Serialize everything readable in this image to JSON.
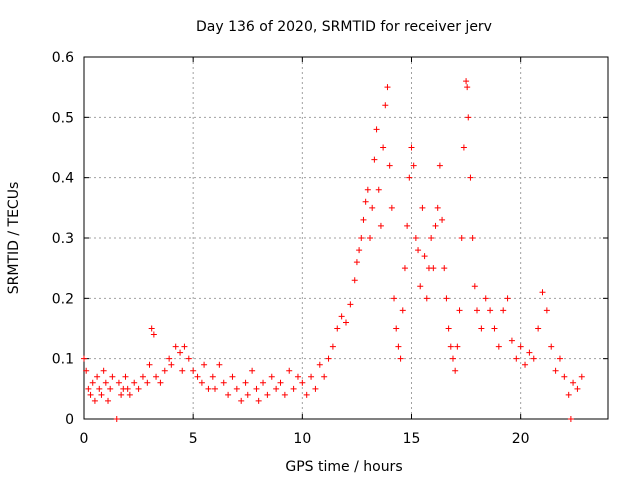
{
  "chart_data": {
    "type": "scatter",
    "title": "Day 136 of 2020, SRMTID for receiver jerv",
    "xlabel": "GPS time / hours",
    "ylabel": "SRMTID / TECUs",
    "xlim": [
      0,
      24
    ],
    "ylim": [
      0,
      0.6
    ],
    "xticks": [
      0,
      5,
      10,
      15,
      20
    ],
    "yticks": [
      0,
      0.1,
      0.2,
      0.3,
      0.4,
      0.5,
      0.6
    ],
    "xtick_labels": [
      "0",
      "5",
      "10",
      "15",
      "20"
    ],
    "ytick_labels": [
      "0",
      "0.1",
      "0.2",
      "0.3",
      "0.4",
      "0.5",
      "0.6"
    ],
    "grid": true,
    "marker": "+",
    "color": "#ff0000",
    "series": [
      {
        "name": "SRMTID",
        "points": [
          [
            0.0,
            0.1
          ],
          [
            0.1,
            0.08
          ],
          [
            0.2,
            0.05
          ],
          [
            0.3,
            0.04
          ],
          [
            0.4,
            0.06
          ],
          [
            0.5,
            0.03
          ],
          [
            0.6,
            0.07
          ],
          [
            0.7,
            0.05
          ],
          [
            0.8,
            0.04
          ],
          [
            0.9,
            0.08
          ],
          [
            1.0,
            0.06
          ],
          [
            1.1,
            0.03
          ],
          [
            1.2,
            0.05
          ],
          [
            1.3,
            0.07
          ],
          [
            1.5,
            0.0
          ],
          [
            1.6,
            0.06
          ],
          [
            1.7,
            0.04
          ],
          [
            1.8,
            0.05
          ],
          [
            1.9,
            0.07
          ],
          [
            2.0,
            0.05
          ],
          [
            2.1,
            0.04
          ],
          [
            2.3,
            0.06
          ],
          [
            2.5,
            0.05
          ],
          [
            2.7,
            0.07
          ],
          [
            2.9,
            0.06
          ],
          [
            3.0,
            0.09
          ],
          [
            3.1,
            0.15
          ],
          [
            3.2,
            0.14
          ],
          [
            3.3,
            0.07
          ],
          [
            3.5,
            0.06
          ],
          [
            3.7,
            0.08
          ],
          [
            3.9,
            0.1
          ],
          [
            4.0,
            0.09
          ],
          [
            4.2,
            0.12
          ],
          [
            4.4,
            0.11
          ],
          [
            4.5,
            0.08
          ],
          [
            4.6,
            0.12
          ],
          [
            4.8,
            0.1
          ],
          [
            5.0,
            0.08
          ],
          [
            5.2,
            0.07
          ],
          [
            5.4,
            0.06
          ],
          [
            5.5,
            0.09
          ],
          [
            5.7,
            0.05
          ],
          [
            5.9,
            0.07
          ],
          [
            6.0,
            0.05
          ],
          [
            6.2,
            0.09
          ],
          [
            6.4,
            0.06
          ],
          [
            6.6,
            0.04
          ],
          [
            6.8,
            0.07
          ],
          [
            7.0,
            0.05
          ],
          [
            7.2,
            0.03
          ],
          [
            7.4,
            0.06
          ],
          [
            7.5,
            0.04
          ],
          [
            7.7,
            0.08
          ],
          [
            7.9,
            0.05
          ],
          [
            8.0,
            0.03
          ],
          [
            8.2,
            0.06
          ],
          [
            8.4,
            0.04
          ],
          [
            8.6,
            0.07
          ],
          [
            8.8,
            0.05
          ],
          [
            9.0,
            0.06
          ],
          [
            9.2,
            0.04
          ],
          [
            9.4,
            0.08
          ],
          [
            9.6,
            0.05
          ],
          [
            9.8,
            0.07
          ],
          [
            10.0,
            0.06
          ],
          [
            10.2,
            0.04
          ],
          [
            10.4,
            0.07
          ],
          [
            10.6,
            0.05
          ],
          [
            10.8,
            0.09
          ],
          [
            11.0,
            0.07
          ],
          [
            11.2,
            0.1
          ],
          [
            11.4,
            0.12
          ],
          [
            11.6,
            0.15
          ],
          [
            11.8,
            0.17
          ],
          [
            12.0,
            0.16
          ],
          [
            12.2,
            0.19
          ],
          [
            12.4,
            0.23
          ],
          [
            12.5,
            0.26
          ],
          [
            12.6,
            0.28
          ],
          [
            12.7,
            0.3
          ],
          [
            12.8,
            0.33
          ],
          [
            12.9,
            0.36
          ],
          [
            13.0,
            0.38
          ],
          [
            13.1,
            0.3
          ],
          [
            13.2,
            0.35
          ],
          [
            13.3,
            0.43
          ],
          [
            13.4,
            0.48
          ],
          [
            13.5,
            0.38
          ],
          [
            13.6,
            0.32
          ],
          [
            13.7,
            0.45
          ],
          [
            13.8,
            0.52
          ],
          [
            13.9,
            0.55
          ],
          [
            14.0,
            0.42
          ],
          [
            14.1,
            0.35
          ],
          [
            14.2,
            0.2
          ],
          [
            14.3,
            0.15
          ],
          [
            14.4,
            0.12
          ],
          [
            14.5,
            0.1
          ],
          [
            14.6,
            0.18
          ],
          [
            14.7,
            0.25
          ],
          [
            14.8,
            0.32
          ],
          [
            14.9,
            0.4
          ],
          [
            15.0,
            0.45
          ],
          [
            15.1,
            0.42
          ],
          [
            15.2,
            0.3
          ],
          [
            15.3,
            0.28
          ],
          [
            15.4,
            0.22
          ],
          [
            15.5,
            0.35
          ],
          [
            15.6,
            0.27
          ],
          [
            15.7,
            0.2
          ],
          [
            15.8,
            0.25
          ],
          [
            15.9,
            0.3
          ],
          [
            16.0,
            0.25
          ],
          [
            16.1,
            0.32
          ],
          [
            16.2,
            0.35
          ],
          [
            16.3,
            0.42
          ],
          [
            16.4,
            0.33
          ],
          [
            16.5,
            0.25
          ],
          [
            16.6,
            0.2
          ],
          [
            16.7,
            0.15
          ],
          [
            16.8,
            0.12
          ],
          [
            16.9,
            0.1
          ],
          [
            17.0,
            0.08
          ],
          [
            17.1,
            0.12
          ],
          [
            17.2,
            0.18
          ],
          [
            17.3,
            0.3
          ],
          [
            17.4,
            0.45
          ],
          [
            17.5,
            0.56
          ],
          [
            17.55,
            0.55
          ],
          [
            17.6,
            0.5
          ],
          [
            17.7,
            0.4
          ],
          [
            17.8,
            0.3
          ],
          [
            17.9,
            0.22
          ],
          [
            18.0,
            0.18
          ],
          [
            18.2,
            0.15
          ],
          [
            18.4,
            0.2
          ],
          [
            18.6,
            0.18
          ],
          [
            18.8,
            0.15
          ],
          [
            19.0,
            0.12
          ],
          [
            19.2,
            0.18
          ],
          [
            19.4,
            0.2
          ],
          [
            19.6,
            0.13
          ],
          [
            19.8,
            0.1
          ],
          [
            20.0,
            0.12
          ],
          [
            20.2,
            0.09
          ],
          [
            20.4,
            0.11
          ],
          [
            20.6,
            0.1
          ],
          [
            20.8,
            0.15
          ],
          [
            21.0,
            0.21
          ],
          [
            21.2,
            0.18
          ],
          [
            21.4,
            0.12
          ],
          [
            21.6,
            0.08
          ],
          [
            21.8,
            0.1
          ],
          [
            22.0,
            0.07
          ],
          [
            22.2,
            0.04
          ],
          [
            22.3,
            0.0
          ],
          [
            22.4,
            0.06
          ],
          [
            22.6,
            0.05
          ],
          [
            22.8,
            0.07
          ]
        ]
      }
    ]
  }
}
